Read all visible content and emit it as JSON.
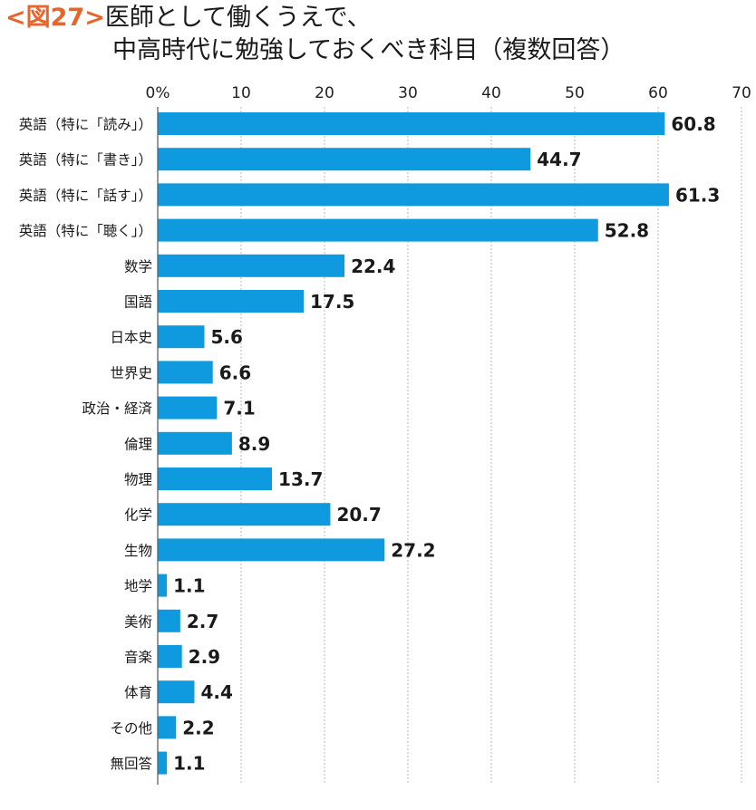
{
  "figure": {
    "tag": "<図27>",
    "title_line1": "医師として働くうえで、",
    "title_line2": "中高時代に勉強しておくべき科目（複数回答）"
  },
  "chart_data": {
    "type": "bar",
    "orientation": "horizontal",
    "title": "医師として働くうえで、中高時代に勉強しておくべき科目（複数回答）",
    "xlabel": "",
    "ylabel": "",
    "xlim": [
      0,
      70
    ],
    "x_ticks": [
      "0%",
      "10",
      "20",
      "30",
      "40",
      "50",
      "60",
      "70"
    ],
    "grid": "vertical-dotted",
    "bar_color": "#0f9ae0",
    "categories": [
      "英語（特に「読み」）",
      "英語（特に「書き」）",
      "英語（特に「話す」）",
      "英語（特に「聴く」）",
      "数学",
      "国語",
      "日本史",
      "世界史",
      "政治・経済",
      "倫理",
      "物理",
      "化学",
      "生物",
      "地学",
      "美術",
      "音楽",
      "体育",
      "その他",
      "無回答"
    ],
    "values": [
      60.8,
      44.7,
      61.3,
      52.8,
      22.4,
      17.5,
      5.6,
      6.6,
      7.1,
      8.9,
      13.7,
      20.7,
      27.2,
      1.1,
      2.7,
      2.9,
      4.4,
      2.2,
      1.1
    ],
    "value_labels": [
      "60.8",
      "44.7",
      "61.3",
      "52.8",
      "22.4",
      "17.5",
      "5.6",
      "6.6",
      "7.1",
      "8.9",
      "13.7",
      "20.7",
      "27.2",
      "1.1",
      "2.7",
      "2.9",
      "4.4",
      "2.2",
      "1.1"
    ]
  }
}
